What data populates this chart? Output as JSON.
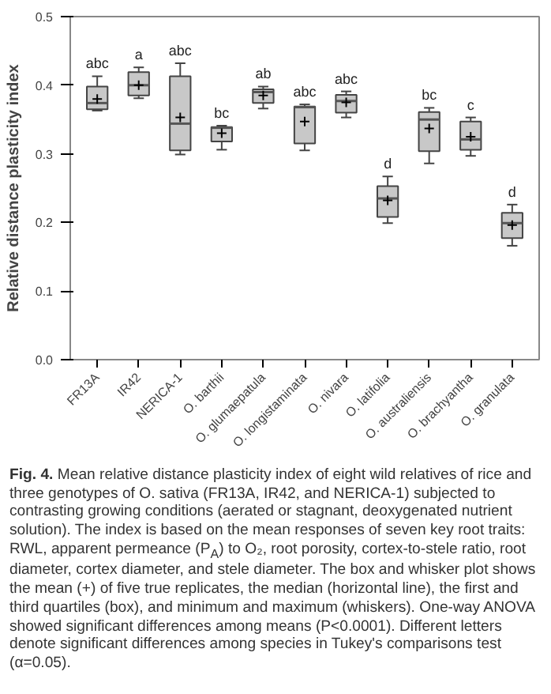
{
  "chart_data": {
    "type": "box",
    "ylabel": "Relative distance plasticity index",
    "categories": [
      "FR13A",
      "IR42",
      "NERICA-1",
      "O. barthii",
      "O. glumaepatula",
      "O. longistaminata",
      "O. nivara",
      "O. latifolia",
      "O. australiensis",
      "O. brachyantha",
      "O. granulata"
    ],
    "color": "#c8c8c8",
    "boxes": [
      {
        "low": 0.363,
        "q1": 0.365,
        "median": 0.374,
        "q3": 0.398,
        "high": 0.413,
        "mean": 0.38
      },
      {
        "low": 0.381,
        "q1": 0.385,
        "median": 0.4,
        "q3": 0.419,
        "high": 0.426,
        "mean": 0.4
      },
      {
        "low": 0.299,
        "q1": 0.305,
        "median": 0.344,
        "q3": 0.413,
        "high": 0.432,
        "mean": 0.353
      },
      {
        "low": 0.306,
        "q1": 0.318,
        "median": 0.338,
        "q3": 0.339,
        "high": 0.341,
        "mean": 0.33
      },
      {
        "low": 0.366,
        "q1": 0.374,
        "median": 0.39,
        "q3": 0.394,
        "high": 0.398,
        "mean": 0.385
      },
      {
        "low": 0.305,
        "q1": 0.315,
        "median": 0.368,
        "q3": 0.369,
        "high": 0.372,
        "mean": 0.347
      },
      {
        "low": 0.353,
        "q1": 0.36,
        "median": 0.377,
        "q3": 0.386,
        "high": 0.391,
        "mean": 0.375
      },
      {
        "low": 0.199,
        "q1": 0.208,
        "median": 0.235,
        "q3": 0.253,
        "high": 0.267,
        "mean": 0.232
      },
      {
        "low": 0.286,
        "q1": 0.304,
        "median": 0.35,
        "q3": 0.361,
        "high": 0.367,
        "mean": 0.337
      },
      {
        "low": 0.297,
        "q1": 0.306,
        "median": 0.321,
        "q3": 0.347,
        "high": 0.353,
        "mean": 0.325
      },
      {
        "low": 0.166,
        "q1": 0.177,
        "median": 0.199,
        "q3": 0.214,
        "high": 0.226,
        "mean": 0.196
      }
    ],
    "ylim": [
      0,
      0.5
    ],
    "yticks": [
      {
        "value": 0,
        "label": "0.0"
      },
      {
        "value": 0.1,
        "label": "0.1"
      },
      {
        "value": 0.2,
        "label": "0.2"
      },
      {
        "value": 0.3,
        "label": "0.3"
      },
      {
        "value": 0.4,
        "label": "0.4"
      },
      {
        "value": 0.5,
        "label": "0.5"
      }
    ],
    "grid": false,
    "annotations": [
      {
        "text": "abc",
        "x": "FR13A",
        "y": 0.42
      },
      {
        "text": "a",
        "x": "IR42",
        "y": 0.433
      },
      {
        "text": "abc",
        "x": "NERICA-1",
        "y": 0.439
      },
      {
        "text": "bc",
        "x": "O. barthii",
        "y": 0.348
      },
      {
        "text": "ab",
        "x": "O. glumaepatula",
        "y": 0.405
      },
      {
        "text": "abc",
        "x": "O. longistaminata",
        "y": 0.379
      },
      {
        "text": "abc",
        "x": "O. nivara",
        "y": 0.398
      },
      {
        "text": "d",
        "x": "O. latifolia",
        "y": 0.274
      },
      {
        "text": "bc",
        "x": "O. australiensis",
        "y": 0.374
      },
      {
        "text": "c",
        "x": "O. brachyantha",
        "y": 0.36
      },
      {
        "text": "d",
        "x": "O. granulata",
        "y": 0.233
      },
      "Fig. 4. Mean relative distance plasticity index of eight wild relatives of rice and three genotypes of O. sativa (FR13A, IR42, and NERICA-1) subjected to contrasting growing conditions (aerated or stagnant, deoxygenated nutrient solution). The index is based on the mean responses of seven key root traits: RWL, apparent permeance (P$_{A}$) to O₂, root porosity, cortex-to-stele ratio, root diameter, cortex diameter, and stele diameter. The box and whisker plot shows the mean (+) of five true replicates, the median (horizontal line), the first and third quartiles (box), and minimum and maximum (whiskers). One-way ANOVA showed significant differences among means (P<0.0001). Different letters denote significant differences among species in Tukey's comparisons test (α=0.05)."
    ]
  }
}
